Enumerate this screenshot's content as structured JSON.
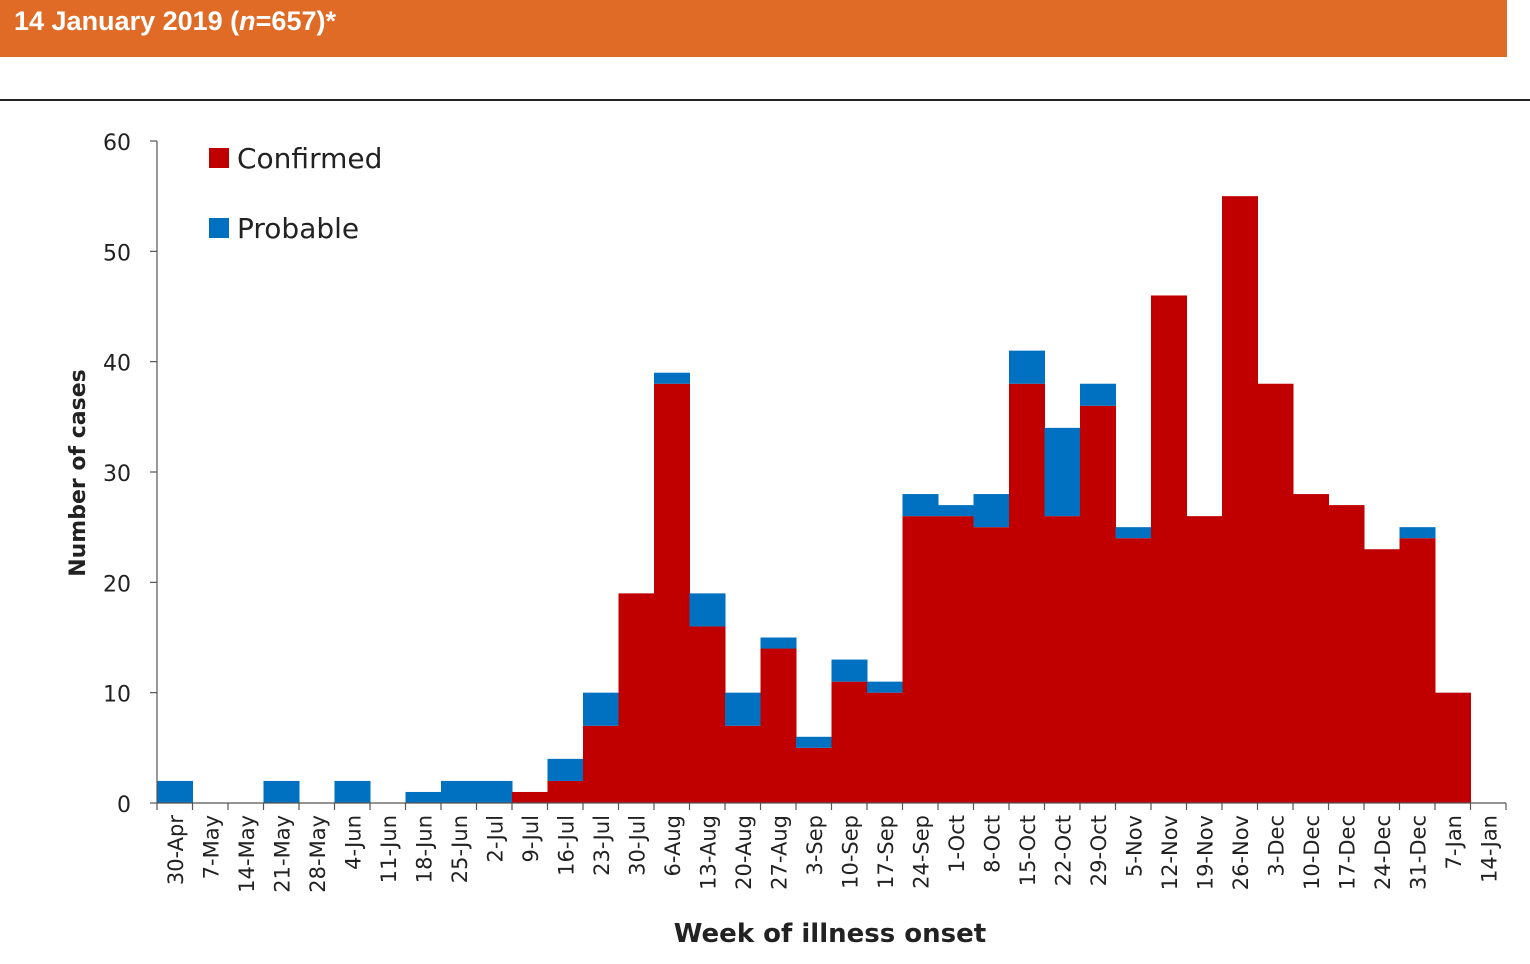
{
  "header": {
    "title_text": "14 January 2019 (",
    "title_italic": "n",
    "title_rest": "=657)*",
    "band_color": "#e06b26"
  },
  "chart_data": {
    "type": "bar",
    "stacked": true,
    "categories": [
      "30-Apr",
      "7-May",
      "14-May",
      "21-May",
      "28-May",
      "4-Jun",
      "11-Jun",
      "18-Jun",
      "25-Jun",
      "2-Jul",
      "9-Jul",
      "16-Jul",
      "23-Jul",
      "30-Jul",
      "6-Aug",
      "13-Aug",
      "20-Aug",
      "27-Aug",
      "3-Sep",
      "10-Sep",
      "17-Sep",
      "24-Sep",
      "1-Oct",
      "8-Oct",
      "15-Oct",
      "22-Oct",
      "29-Oct",
      "5-Nov",
      "12-Nov",
      "19-Nov",
      "26-Nov",
      "3-Dec",
      "10-Dec",
      "17-Dec",
      "24-Dec",
      "31-Dec",
      "7-Jan",
      "14-Jan"
    ],
    "series": [
      {
        "name": "Confirmed",
        "color": "#c00000",
        "values": [
          0,
          0,
          0,
          0,
          0,
          0,
          0,
          0,
          0,
          0,
          1,
          2,
          7,
          19,
          38,
          16,
          7,
          14,
          5,
          11,
          10,
          26,
          26,
          25,
          38,
          26,
          36,
          24,
          46,
          26,
          55,
          38,
          28,
          27,
          23,
          24,
          10,
          0
        ]
      },
      {
        "name": "Probable",
        "color": "#0070c0",
        "values": [
          2,
          0,
          0,
          2,
          0,
          2,
          0,
          1,
          2,
          2,
          0,
          2,
          3,
          0,
          1,
          3,
          3,
          1,
          1,
          2,
          1,
          2,
          1,
          3,
          3,
          8,
          2,
          1,
          0,
          0,
          0,
          0,
          0,
          0,
          0,
          1,
          0,
          0
        ]
      }
    ],
    "xlabel": "Week of illness onset",
    "ylabel": "Number of cases",
    "ylim": [
      0,
      60
    ],
    "yticks": [
      0,
      10,
      20,
      30,
      40,
      50,
      60
    ],
    "grid": false,
    "legend_position": "top-left"
  }
}
